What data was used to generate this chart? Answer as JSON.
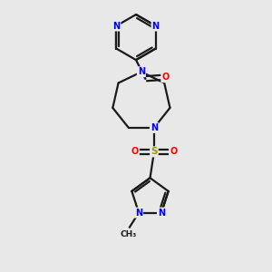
{
  "background_color": "#e8e8e8",
  "bond_color": "#1a1a1a",
  "N_color": "#0000ff",
  "O_color": "#ff0000",
  "S_color": "#999900",
  "C_color": "#1a1a1a",
  "line_width": 1.6,
  "double_sep": 0.09,
  "figsize": [
    3.0,
    3.0
  ],
  "dpi": 100,
  "xlim": [
    -2.5,
    2.5
  ],
  "ylim": [
    -5.5,
    4.5
  ]
}
